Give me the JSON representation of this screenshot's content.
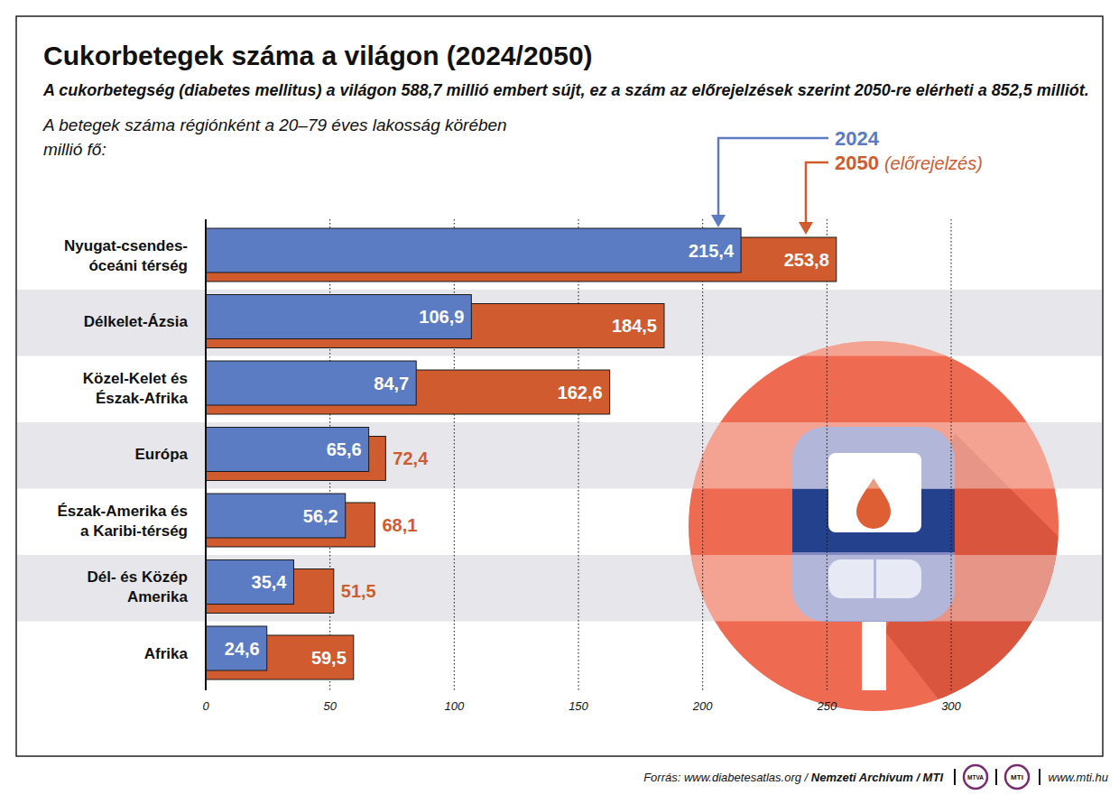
{
  "chart_data": {
    "type": "bar",
    "orientation": "horizontal",
    "title": "Cukorbetegek száma a világon (2024/2050)",
    "subtitle": "A cukorbetegség (diabetes mellitus) a világon 588,7 millió embert sújt, ez a szám az előrejelzések szerint 2050-re elérheti a 852,5 milliót.",
    "note": "A betegek száma régiónként a 20–79 éves lakosság körében",
    "x_label": "millió fő:",
    "legend_note": "(előrejelzés)",
    "legend": "top-right",
    "categories": [
      "Nyugat-csendes-óceáni térség",
      "Délkelet-Ázsia",
      "Közel-Kelet és Észak-Afrika",
      "Európa",
      "Észak-Amerika és a Karibi-térség",
      "Dél- és Közép Amerika",
      "Afrika"
    ],
    "series": [
      {
        "name": "2024",
        "color": "#5b7bc3",
        "values": [
          215.4,
          106.9,
          84.7,
          65.6,
          56.2,
          35.4,
          24.6
        ],
        "value_labels": [
          "215,4",
          "106,9",
          "84,7",
          "65,6",
          "56,2",
          "35,4",
          "24,6"
        ]
      },
      {
        "name": "2050",
        "color": "#cf5b2f",
        "values": [
          253.8,
          184.5,
          162.6,
          72.4,
          68.1,
          51.5,
          59.5
        ],
        "value_labels": [
          "253,8",
          "184,5",
          "162,6",
          "72,4",
          "68,1",
          "51,5",
          "59,5"
        ]
      }
    ],
    "xlim": [
      0,
      300
    ],
    "xticks": [
      0,
      50,
      100,
      150,
      200,
      250,
      300
    ],
    "grid": true,
    "data_labels": true,
    "source": "Forrás: www.diabetesatlas.org /",
    "source_bold": "Nemzeti Archívum / MTI",
    "logos": [
      "MTVA",
      "MTI"
    ],
    "website": "www.mti.hu"
  }
}
